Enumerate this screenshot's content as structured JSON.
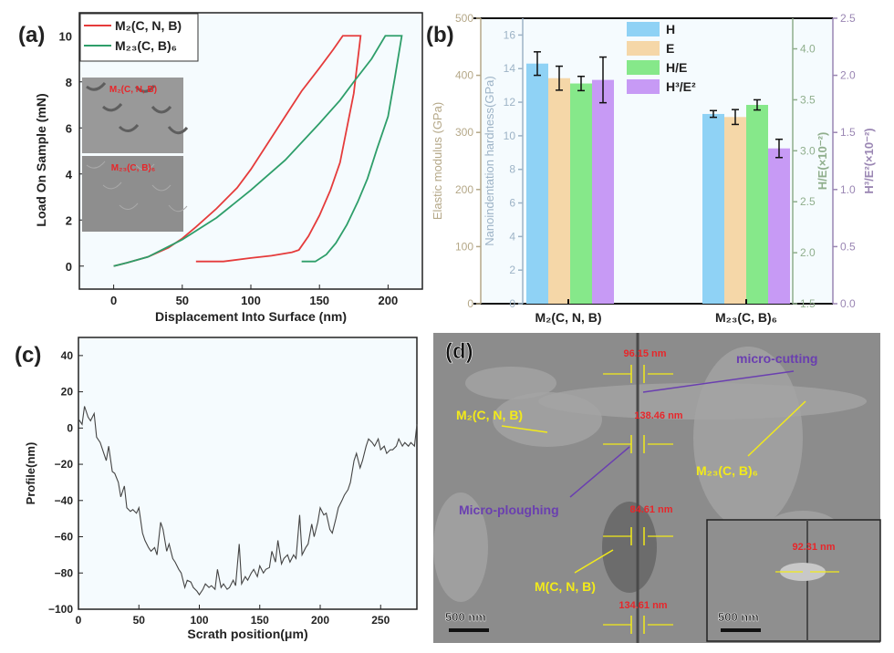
{
  "chart_data": [
    {
      "panel": "(a)",
      "type": "line",
      "xlabel": "Displacement Into Surface (nm)",
      "ylabel": "Load On Sample (mN)",
      "xlim": [
        -25,
        225
      ],
      "ylim": [
        -1,
        11
      ],
      "xticks": [
        0,
        50,
        100,
        150,
        200
      ],
      "yticks": [
        0,
        2,
        4,
        6,
        8,
        10
      ],
      "legend": "top-left",
      "series": [
        {
          "name": "M₂(C, N, B)",
          "color": "#e53b3b",
          "x": [
            0,
            10,
            25,
            40,
            50,
            60,
            75,
            90,
            100,
            112,
            125,
            137,
            150,
            160,
            167,
            180,
            178,
            175,
            170,
            165,
            158,
            150,
            142,
            135,
            130,
            115,
            100,
            80,
            60
          ],
          "y": [
            0,
            0.15,
            0.4,
            0.8,
            1.2,
            1.7,
            2.5,
            3.4,
            4.2,
            5.3,
            6.5,
            7.6,
            8.6,
            9.4,
            10,
            10,
            9,
            7.5,
            6,
            4.5,
            3.3,
            2.2,
            1.3,
            0.7,
            0.6,
            0.45,
            0.35,
            0.2,
            0.2
          ]
        },
        {
          "name": "M₂₃(C, B)₆",
          "color": "#2e9e6a",
          "x": [
            0,
            10,
            25,
            40,
            50,
            75,
            100,
            125,
            150,
            165,
            175,
            188,
            198,
            210,
            205,
            200,
            192,
            185,
            178,
            170,
            162,
            155,
            147,
            137
          ],
          "y": [
            0,
            0.15,
            0.4,
            0.85,
            1.15,
            2.1,
            3.3,
            4.6,
            6.2,
            7.2,
            8.0,
            9.0,
            10,
            10,
            8.2,
            6.5,
            5.1,
            3.8,
            2.8,
            1.8,
            1.0,
            0.5,
            0.2,
            0.2
          ]
        }
      ],
      "insets": [
        {
          "label": "M₂(C, N, B)"
        },
        {
          "label": "M₂₃(C, B)₆"
        }
      ]
    },
    {
      "panel": "(b)",
      "type": "bar",
      "categories": [
        "M₂(C, N, B)",
        "M₂₃(C, B)₆"
      ],
      "axes": [
        {
          "label": "Elastic modulus (GPa)",
          "side": "left-outer",
          "lim": [
            0,
            500
          ],
          "ticks": [
            0,
            100,
            200,
            300,
            400,
            500
          ],
          "color": "#b5a888"
        },
        {
          "label": "Nanoindentation hardness(GPa)",
          "side": "left-inner",
          "lim": [
            0,
            17
          ],
          "ticks": [
            0,
            2,
            4,
            6,
            8,
            10,
            12,
            14,
            16
          ],
          "color": "#9db3c6"
        },
        {
          "label": "H/E(×10⁻²)",
          "side": "right-inner",
          "lim": [
            1.5,
            4.3
          ],
          "ticks": [
            1.5,
            2.0,
            2.5,
            3.0,
            3.5,
            4.0
          ],
          "color": "#8fae8c"
        },
        {
          "label": "H³/E²(×10⁻²)",
          "side": "right-outer",
          "lim": [
            0,
            2.5
          ],
          "ticks": [
            0.0,
            0.5,
            1.0,
            1.5,
            2.0,
            2.5
          ],
          "color": "#9a86b3"
        }
      ],
      "legend": "top-center",
      "series": [
        {
          "name": "H",
          "axis": 1,
          "color": "#8fd2f5",
          "values": [
            14.3,
            11.3
          ],
          "errors": [
            0.7,
            0.2
          ]
        },
        {
          "name": "E",
          "axis": 0,
          "color": "#f5d7a8",
          "values": [
            395,
            327
          ],
          "errors": [
            21,
            13
          ]
        },
        {
          "name": "H/E",
          "axis": 2,
          "color": "#86e88a",
          "values": [
            3.66,
            3.45
          ],
          "errors": [
            0.07,
            0.05
          ]
        },
        {
          "name": "H³/E²",
          "axis": 3,
          "color": "#c79af5",
          "values": [
            1.96,
            1.36
          ],
          "errors": [
            0.2,
            0.08
          ]
        }
      ]
    },
    {
      "panel": "(c)",
      "type": "line",
      "xlabel": "Scrath position(μm)",
      "ylabel": "Profile(nm)",
      "xlim": [
        0,
        280
      ],
      "ylim": [
        -100,
        50
      ],
      "xticks": [
        0,
        50,
        100,
        150,
        200,
        250
      ],
      "yticks": [
        -100,
        -80,
        -60,
        -40,
        -20,
        0,
        20,
        40
      ],
      "color": "#444444",
      "x": [
        0,
        3,
        5,
        8,
        10,
        13,
        15,
        18,
        20,
        23,
        25,
        28,
        30,
        33,
        35,
        38,
        40,
        43,
        45,
        48,
        50,
        53,
        55,
        58,
        60,
        63,
        65,
        68,
        70,
        73,
        75,
        78,
        80,
        83,
        85,
        88,
        90,
        93,
        95,
        98,
        100,
        103,
        105,
        108,
        110,
        113,
        115,
        118,
        120,
        123,
        125,
        128,
        130,
        133,
        135,
        138,
        140,
        143,
        145,
        148,
        150,
        153,
        155,
        158,
        160,
        163,
        165,
        168,
        170,
        173,
        175,
        178,
        180,
        183,
        185,
        188,
        190,
        193,
        195,
        198,
        200,
        203,
        205,
        208,
        210,
        213,
        215,
        218,
        220,
        223,
        225,
        228,
        230,
        233,
        235,
        238,
        240,
        243,
        245,
        248,
        250,
        253,
        255,
        258,
        260,
        263,
        265,
        268,
        270,
        273,
        275,
        278,
        280
      ],
      "y": [
        5,
        2,
        12,
        6,
        4,
        8,
        -5,
        -8,
        -12,
        -18,
        -10,
        -24,
        -25,
        -30,
        -38,
        -32,
        -44,
        -46,
        -45,
        -47,
        -44,
        -58,
        -62,
        -66,
        -68,
        -66,
        -70,
        -52,
        -56,
        -68,
        -64,
        -72,
        -74,
        -78,
        -80,
        -88,
        -84,
        -85,
        -88,
        -90,
        -92,
        -89,
        -86,
        -88,
        -87,
        -89,
        -78,
        -88,
        -86,
        -89,
        -88,
        -84,
        -87,
        -64,
        -86,
        -82,
        -84,
        -80,
        -78,
        -82,
        -76,
        -80,
        -78,
        -77,
        -68,
        -74,
        -62,
        -75,
        -72,
        -70,
        -74,
        -70,
        -72,
        -48,
        -70,
        -66,
        -64,
        -53,
        -60,
        -52,
        -44,
        -48,
        -47,
        -56,
        -58,
        -50,
        -44,
        -40,
        -37,
        -34,
        -30,
        -18,
        -14,
        -22,
        -18,
        -10,
        -6,
        -8,
        -10,
        -6,
        -12,
        -10,
        -14,
        -12,
        -12,
        -10,
        -6,
        -10,
        -8,
        -10,
        -8,
        -10,
        2
      ]
    }
  ],
  "panel_d": {
    "label": "(d)",
    "measurements": [
      "96.15 nm",
      "138.46 nm",
      "84.61 nm",
      "134.61 nm"
    ],
    "inset_measurement": "92.31 nm",
    "phases": [
      "M₂(C, N, B)",
      "M₂₃(C, B)₆",
      "M(C, N, B)"
    ],
    "mechanisms": [
      "micro-cutting",
      "Micro-ploughing"
    ],
    "scale_bar": "500 nm",
    "inset_scale_bar": "500 nm",
    "colors": {
      "measurement": "#e8262a",
      "phase": "#f2ea1a",
      "mechanism": "#6a3fb0"
    }
  }
}
